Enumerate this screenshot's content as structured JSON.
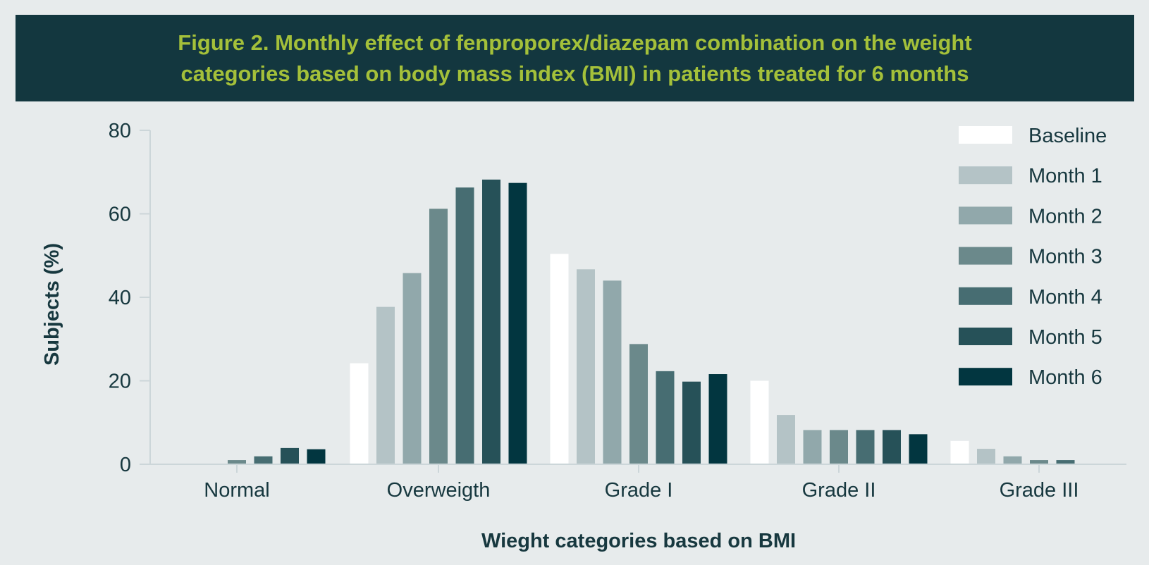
{
  "chart_data": {
    "type": "bar",
    "title": "Figure 2. Monthly effect of fenproporex/diazepam combination on the weight categories based on body mass index (BMI) in patients treated for 6 months",
    "title_lines": [
      "Figure 2. Monthly effect of fenproporex/diazepam combination on the weight",
      "categories based on body mass index (BMI) in patients treated for 6 months"
    ],
    "xlabel": "Wieght categories based on BMI",
    "ylabel": "Subjects (%)",
    "ylim": [
      0,
      80
    ],
    "yticks": [
      0,
      20,
      40,
      60,
      80
    ],
    "grid": false,
    "legend_position": "top-right",
    "categories": [
      "Normal",
      "Overweigth",
      "Grade I",
      "Grade II",
      "Grade III"
    ],
    "series": [
      {
        "name": "Baseline",
        "color": "#ffffff",
        "values": [
          0,
          24.2,
          50.4,
          20.0,
          5.6
        ]
      },
      {
        "name": "Month 1",
        "color": "#b4c3c6",
        "values": [
          0,
          37.7,
          46.7,
          11.8,
          3.7
        ]
      },
      {
        "name": "Month 2",
        "color": "#91a8ab",
        "values": [
          0,
          45.8,
          44.0,
          8.2,
          1.9
        ]
      },
      {
        "name": "Month 3",
        "color": "#6b898b",
        "values": [
          1.0,
          61.2,
          28.8,
          8.2,
          1.0
        ]
      },
      {
        "name": "Month 4",
        "color": "#476d72",
        "values": [
          1.9,
          66.3,
          22.3,
          8.2,
          1.0
        ]
      },
      {
        "name": "Month 5",
        "color": "#265158",
        "values": [
          3.9,
          68.2,
          19.8,
          8.2,
          0
        ]
      },
      {
        "name": "Month 6",
        "color": "#023640",
        "values": [
          3.6,
          67.4,
          21.6,
          7.2,
          0
        ]
      }
    ]
  }
}
